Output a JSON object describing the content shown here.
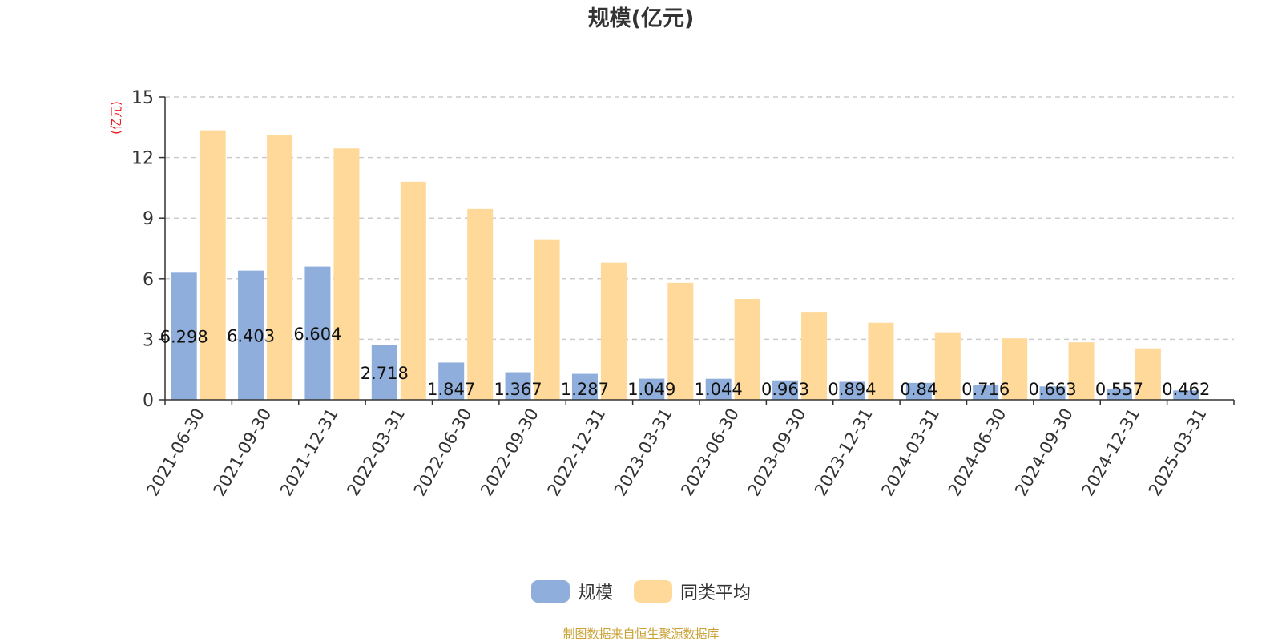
{
  "colors": {
    "series_1": "#8FAEDB",
    "series_2": "#FFD999",
    "unit_label": "#E8191C",
    "source": "#C9A033",
    "axis": "#333333",
    "grid": "#CCCCCC"
  },
  "source_note": "制图数据来自恒生聚源数据库",
  "chart_data": {
    "type": "bar",
    "title": "规模(亿元)",
    "ylabel": "(亿元)",
    "xlabel": "",
    "categories": [
      "2021-06-30",
      "2021-09-30",
      "2021-12-31",
      "2022-03-31",
      "2022-06-30",
      "2022-09-30",
      "2022-12-31",
      "2023-03-31",
      "2023-06-30",
      "2023-09-30",
      "2023-12-31",
      "2024-03-31",
      "2024-06-30",
      "2024-09-30",
      "2024-12-31",
      "2025-03-31"
    ],
    "series": [
      {
        "name": "规模",
        "values": [
          6.298,
          6.403,
          6.604,
          2.718,
          1.847,
          1.367,
          1.287,
          1.049,
          1.044,
          0.963,
          0.894,
          0.84,
          0.716,
          0.663,
          0.557,
          0.462
        ],
        "labels": [
          "6.298",
          "6.403",
          "6.604",
          "2.718",
          "1.847",
          "1.367",
          "1.287",
          "1.049",
          "1.044",
          "0.963",
          "0.894",
          "0.84",
          "0.716",
          "0.663",
          "0.557",
          "0.462"
        ]
      },
      {
        "name": "同类平均",
        "values": [
          13.35,
          13.1,
          12.45,
          10.8,
          9.45,
          7.95,
          6.8,
          5.8,
          5.0,
          4.32,
          3.82,
          3.35,
          3.05,
          2.85,
          2.55,
          0
        ]
      }
    ],
    "ylim": [
      0,
      15
    ],
    "yticks": [
      0,
      3,
      6,
      9,
      12,
      15
    ],
    "grid": true,
    "legend_position": "bottom-center"
  }
}
